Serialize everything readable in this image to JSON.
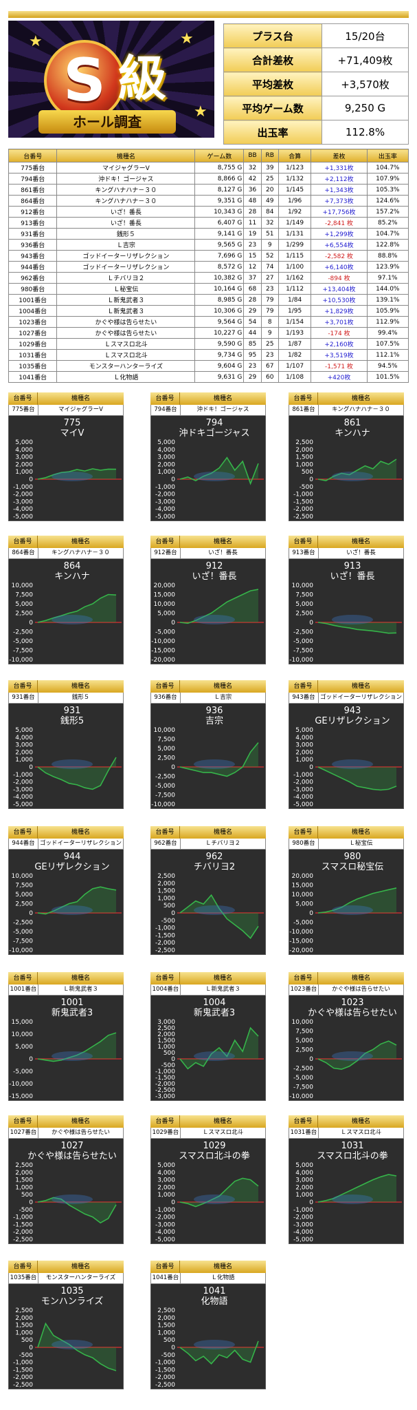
{
  "logo": {
    "s_letter": "S",
    "kyu": "級",
    "ribbon": "ホール調査"
  },
  "summary": [
    {
      "label": "プラス台",
      "value": "15/20台"
    },
    {
      "label": "合計差枚",
      "value": "+71,409枚"
    },
    {
      "label": "平均差枚",
      "value": "+3,570枚"
    },
    {
      "label": "平均ゲーム数",
      "value": "9,250 G"
    },
    {
      "label": "出玉率",
      "value": "112.8%"
    }
  ],
  "table": {
    "headers": [
      "台番号",
      "機種名",
      "ゲーム数",
      "BB",
      "RB",
      "合算",
      "差枚",
      "出玉率"
    ],
    "rows": [
      [
        "775番台",
        "マイジャグラーV",
        "8,755 G",
        "32",
        "39",
        "1/123",
        "+1,331枚",
        "104.7%"
      ],
      [
        "794番台",
        "沖ドキ！ゴージャス",
        "8,866 G",
        "42",
        "25",
        "1/132",
        "+2,112枚",
        "107.9%"
      ],
      [
        "861番台",
        "キングハナハナ－３０",
        "8,127 G",
        "36",
        "20",
        "1/145",
        "+1,343枚",
        "105.3%"
      ],
      [
        "864番台",
        "キングハナハナ－３０",
        "9,351 G",
        "48",
        "49",
        "1/96",
        "+7,373枚",
        "124.6%"
      ],
      [
        "912番台",
        "いざ！番長",
        "10,343 G",
        "28",
        "84",
        "1/92",
        "+17,756枚",
        "157.2%"
      ],
      [
        "913番台",
        "いざ！番長",
        "6,407 G",
        "11",
        "32",
        "1/149",
        "-2,841 枚",
        "85.2%"
      ],
      [
        "931番台",
        "銭形５",
        "9,141 G",
        "19",
        "51",
        "1/131",
        "+1,299枚",
        "104.7%"
      ],
      [
        "936番台",
        "Ｌ吉宗",
        "9,565 G",
        "23",
        "9",
        "1/299",
        "+6,554枚",
        "122.8%"
      ],
      [
        "943番台",
        "ゴッドイーターリザレクション",
        "7,696 G",
        "15",
        "52",
        "1/115",
        "-2,582 枚",
        "88.8%"
      ],
      [
        "944番台",
        "ゴッドイーターリザレクション",
        "8,572 G",
        "12",
        "74",
        "1/100",
        "+6,140枚",
        "123.9%"
      ],
      [
        "962番台",
        "Ｌチバリヨ２",
        "10,382 G",
        "37",
        "27",
        "1/162",
        "-894 枚",
        "97.1%"
      ],
      [
        "980番台",
        "Ｌ秘宝伝",
        "10,164 G",
        "68",
        "23",
        "1/112",
        "+13,404枚",
        "144.0%"
      ],
      [
        "1001番台",
        "Ｌ新鬼武者３",
        "8,985 G",
        "28",
        "79",
        "1/84",
        "+10,530枚",
        "139.1%"
      ],
      [
        "1004番台",
        "Ｌ新鬼武者３",
        "10,306 G",
        "29",
        "79",
        "1/95",
        "+1,829枚",
        "105.9%"
      ],
      [
        "1023番台",
        "かぐや様は告らせたい",
        "9,564 G",
        "54",
        "8",
        "1/154",
        "+3,701枚",
        "112.9%"
      ],
      [
        "1027番台",
        "かぐや様は告らせたい",
        "10,227 G",
        "44",
        "9",
        "1/193",
        "-174 枚",
        "99.4%"
      ],
      [
        "1029番台",
        "Ｌスマスロ北斗",
        "9,590 G",
        "85",
        "25",
        "1/87",
        "+2,160枚",
        "107.5%"
      ],
      [
        "1031番台",
        "Ｌスマスロ北斗",
        "9,734 G",
        "95",
        "23",
        "1/82",
        "+3,519枚",
        "112.1%"
      ],
      [
        "1035番台",
        "モンスターハンターライズ",
        "9,604 G",
        "23",
        "67",
        "1/107",
        "-1,571 枚",
        "94.5%"
      ],
      [
        "1041番台",
        "Ｌ化物語",
        "9,631 G",
        "29",
        "60",
        "1/108",
        "+420枚",
        "101.5%"
      ]
    ]
  },
  "card_header": {
    "num_label": "台番号",
    "name_label": "機種名"
  },
  "charts": [
    {
      "num": "775番台",
      "name": "マイジャグラーV",
      "t1": "775",
      "t2": "マイV",
      "ticks": [
        5000,
        4000,
        3000,
        2000,
        1000,
        0,
        -1000,
        -2000,
        -3000,
        -4000,
        -5000
      ],
      "pts": [
        0,
        200,
        600,
        900,
        1000,
        1300,
        1100,
        1400,
        1200,
        1350,
        1331
      ]
    },
    {
      "num": "794番台",
      "name": "沖ドキ！ゴージャス",
      "t1": "794",
      "t2": "沖ドキゴージャス",
      "ticks": [
        5000,
        4000,
        3000,
        2000,
        1000,
        0,
        -1000,
        -2000,
        -3000,
        -4000,
        -5000
      ],
      "pts": [
        0,
        300,
        -200,
        400,
        800,
        1500,
        2900,
        1200,
        2400,
        -600,
        2112
      ]
    },
    {
      "num": "861番台",
      "name": "キングハナハナ－３０",
      "t1": "861",
      "t2": "キンハナ",
      "ticks": [
        2500,
        2000,
        1500,
        1000,
        500,
        0,
        -500,
        -1000,
        -1500,
        -2000,
        -2500
      ],
      "pts": [
        0,
        -100,
        200,
        400,
        300,
        600,
        900,
        700,
        1200,
        1000,
        1343
      ]
    },
    {
      "num": "864番台",
      "name": "キングハナハナ－３０",
      "t1": "864",
      "t2": "キンハナ",
      "ticks": [
        10000,
        7500,
        5000,
        2500,
        0,
        -2500,
        -5000,
        -7500,
        -10000
      ],
      "pts": [
        0,
        500,
        1200,
        1800,
        2500,
        3000,
        4200,
        5000,
        6500,
        7500,
        7373
      ]
    },
    {
      "num": "912番台",
      "name": "いざ！番長",
      "t1": "912",
      "t2": "いざ！番長",
      "ticks": [
        20000,
        15000,
        10000,
        5000,
        0,
        -5000,
        -10000,
        -15000,
        -20000
      ],
      "pts": [
        0,
        -500,
        1000,
        3000,
        5000,
        8000,
        11000,
        13000,
        15000,
        17000,
        17756
      ]
    },
    {
      "num": "913番台",
      "name": "いざ！番長",
      "t1": "913",
      "t2": "いざ！番長",
      "ticks": [
        10000,
        7500,
        5000,
        2500,
        0,
        -2500,
        -5000,
        -7500,
        -10000
      ],
      "pts": [
        0,
        -300,
        -800,
        -1200,
        -1500,
        -1900,
        -2100,
        -2300,
        -2600,
        -2900,
        -2841
      ]
    },
    {
      "num": "931番台",
      "name": "銭形５",
      "t1": "931",
      "t2": "銭形5",
      "ticks": [
        5000,
        4000,
        3000,
        2000,
        1000,
        0,
        -1000,
        -2000,
        -3000,
        -4000,
        -5000
      ],
      "pts": [
        0,
        -800,
        -1300,
        -1700,
        -2200,
        -2400,
        -2800,
        -3000,
        -2500,
        -500,
        1299
      ]
    },
    {
      "num": "936番台",
      "name": "Ｌ吉宗",
      "t1": "936",
      "t2": "吉宗",
      "ticks": [
        10000,
        7500,
        5000,
        2500,
        0,
        -2500,
        -5000,
        -7500,
        -10000
      ],
      "pts": [
        0,
        -500,
        -1000,
        -1500,
        -1500,
        -2000,
        -2500,
        -1500,
        0,
        4000,
        6554
      ]
    },
    {
      "num": "943番台",
      "name": "ゴッドイーターリザレクション",
      "t1": "943",
      "t2": "GEリザレクション",
      "ticks": [
        5000,
        4000,
        3000,
        2000,
        1000,
        0,
        -1000,
        -2000,
        -3000,
        -4000,
        -5000
      ],
      "pts": [
        0,
        -500,
        -1000,
        -1500,
        -2000,
        -2600,
        -2800,
        -3000,
        -3100,
        -3000,
        -2582
      ]
    },
    {
      "num": "944番台",
      "name": "ゴッドイーターリザレクション",
      "t1": "944",
      "t2": "GEリザレクション",
      "ticks": [
        10000,
        7500,
        5000,
        2500,
        0,
        -2500,
        -5000,
        -7500,
        -10000
      ],
      "pts": [
        0,
        -300,
        500,
        1500,
        2500,
        3000,
        5000,
        6500,
        7000,
        6500,
        6140
      ]
    },
    {
      "num": "962番台",
      "name": "Ｌチバリヨ２",
      "t1": "962",
      "t2": "チバリヨ2",
      "ticks": [
        2500,
        2000,
        1500,
        1000,
        500,
        0,
        -500,
        -1000,
        -1500,
        -2000,
        -2500
      ],
      "pts": [
        0,
        400,
        800,
        600,
        1200,
        300,
        -400,
        -800,
        -1200,
        -1700,
        -894
      ]
    },
    {
      "num": "980番台",
      "name": "Ｌ秘宝伝",
      "t1": "980",
      "t2": "スマスロ秘宝伝",
      "ticks": [
        20000,
        15000,
        10000,
        5000,
        0,
        -5000,
        -10000,
        -15000,
        -20000
      ],
      "pts": [
        0,
        500,
        1500,
        3000,
        5500,
        7500,
        9000,
        10500,
        11500,
        12500,
        13404
      ]
    },
    {
      "num": "1001番台",
      "name": "Ｌ新鬼武者３",
      "t1": "1001",
      "t2": "新鬼武者3",
      "ticks": [
        15000,
        10000,
        5000,
        0,
        -5000,
        -10000,
        -15000
      ],
      "pts": [
        0,
        -500,
        -1000,
        -500,
        500,
        1500,
        3000,
        5000,
        7000,
        9500,
        10530
      ]
    },
    {
      "num": "1004番台",
      "name": "Ｌ新鬼武者３",
      "t1": "1004",
      "t2": "新鬼武者3",
      "ticks": [
        3000,
        2500,
        2000,
        1500,
        1000,
        500,
        0,
        -500,
        -1000,
        -1500,
        -2000,
        -2500,
        -3000
      ],
      "pts": [
        0,
        -800,
        -300,
        -600,
        400,
        900,
        200,
        1500,
        600,
        2500,
        1829
      ]
    },
    {
      "num": "1023番台",
      "name": "かぐや様は告らせたい",
      "t1": "1023",
      "t2": "かぐや様は告らせたい",
      "ticks": [
        10000,
        7500,
        5000,
        2500,
        0,
        -2500,
        -5000,
        -7500,
        -10000
      ],
      "pts": [
        0,
        -1000,
        -2500,
        -2800,
        -2000,
        -500,
        1500,
        2500,
        4000,
        4800,
        3701
      ]
    },
    {
      "num": "1027番台",
      "name": "かぐや様は告らせたい",
      "t1": "1027",
      "t2": "かぐや様は告らせたい",
      "ticks": [
        2500,
        2000,
        1500,
        1000,
        500,
        0,
        -500,
        -1000,
        -1500,
        -2000,
        -2500
      ],
      "pts": [
        0,
        100,
        300,
        200,
        -200,
        -500,
        -800,
        -1000,
        -1400,
        -1100,
        -174
      ]
    },
    {
      "num": "1029番台",
      "name": "Ｌスマスロ北斗",
      "t1": "1029",
      "t2": "スマスロ北斗の拳",
      "ticks": [
        5000,
        4000,
        3000,
        2000,
        1000,
        0,
        -1000,
        -2000,
        -3000,
        -4000,
        -5000
      ],
      "pts": [
        0,
        -200,
        -600,
        -200,
        300,
        800,
        1800,
        2800,
        3200,
        3000,
        2160
      ]
    },
    {
      "num": "1031番台",
      "name": "Ｌスマスロ北斗",
      "t1": "1031",
      "t2": "スマスロ北斗の拳",
      "ticks": [
        5000,
        4000,
        3000,
        2000,
        1000,
        0,
        -1000,
        -2000,
        -3000,
        -4000,
        -5000
      ],
      "pts": [
        0,
        200,
        500,
        1000,
        1500,
        2000,
        2500,
        3000,
        3400,
        3700,
        3519
      ]
    },
    {
      "num": "1035番台",
      "name": "モンスターハンターライズ",
      "t1": "1035",
      "t2": "モンハンライズ",
      "ticks": [
        2500,
        2000,
        1500,
        1000,
        500,
        0,
        -500,
        -1000,
        -1500,
        -2000,
        -2500
      ],
      "pts": [
        0,
        1600,
        800,
        500,
        200,
        -200,
        -500,
        -700,
        -1100,
        -1400,
        -1571
      ]
    },
    {
      "num": "1041番台",
      "name": "Ｌ化物語",
      "t1": "1041",
      "t2": "化物語",
      "ticks": [
        2500,
        2000,
        1500,
        1000,
        500,
        0,
        -500,
        -1000,
        -1500,
        -2000,
        -2500
      ],
      "pts": [
        0,
        -400,
        -900,
        -600,
        -1100,
        -500,
        -700,
        -200,
        -800,
        -1000,
        420
      ]
    }
  ]
}
